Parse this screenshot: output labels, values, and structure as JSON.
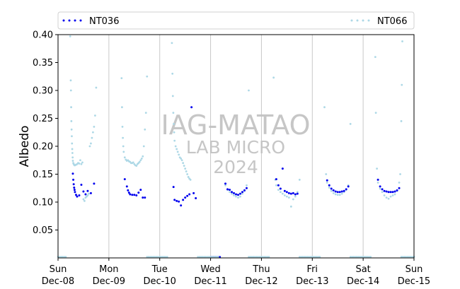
{
  "chart_data": {
    "type": "scatter",
    "ylabel": "Albedo",
    "xlabel": "",
    "title": "",
    "ylim": [
      0.0,
      0.4
    ],
    "yticks": [
      0.05,
      0.1,
      0.15,
      0.2,
      0.25,
      0.3,
      0.35,
      0.4
    ],
    "xlim": [
      "2024-12-08",
      "2024-12-15"
    ],
    "xticks": [
      {
        "day": "Sun",
        "date": "Dec-08"
      },
      {
        "day": "Mon",
        "date": "Dec-09"
      },
      {
        "day": "Tue",
        "date": "Dec-10"
      },
      {
        "day": "Wed",
        "date": "Dec-11"
      },
      {
        "day": "Thu",
        "date": "Dec-12"
      },
      {
        "day": "Fri",
        "date": "Dec-13"
      },
      {
        "day": "Sat",
        "date": "Dec-14"
      },
      {
        "day": "Sun",
        "date": "Dec-15"
      }
    ],
    "grid": "vertical-at-day-boundaries",
    "legend_placement": "top",
    "watermark": [
      "IAG-MATAO",
      "LAB MICRO",
      "2024"
    ],
    "series": [
      {
        "name": "NT036",
        "color": "#0000ee",
        "points": [
          [
            "2024-12-08 07:00",
            0.151
          ],
          [
            "2024-12-08 07:12",
            0.14
          ],
          [
            "2024-12-08 07:24",
            0.132
          ],
          [
            "2024-12-08 07:36",
            0.126
          ],
          [
            "2024-12-08 07:48",
            0.122
          ],
          [
            "2024-12-08 08:00",
            0.118
          ],
          [
            "2024-12-08 08:30",
            0.113
          ],
          [
            "2024-12-08 09:00",
            0.11
          ],
          [
            "2024-12-08 10:00",
            0.112
          ],
          [
            "2024-12-08 11:00",
            0.131
          ],
          [
            "2024-12-08 12:00",
            0.119
          ],
          [
            "2024-12-08 13:00",
            0.114
          ],
          [
            "2024-12-08 14:00",
            0.12
          ],
          [
            "2024-12-08 15:30",
            0.116
          ],
          [
            "2024-12-08 17:00",
            0.133
          ],
          [
            "2024-12-09 07:30",
            0.141
          ],
          [
            "2024-12-09 08:30",
            0.128
          ],
          [
            "2024-12-09 09:00",
            0.121
          ],
          [
            "2024-12-09 09:30",
            0.117
          ],
          [
            "2024-12-09 10:00",
            0.114
          ],
          [
            "2024-12-09 11:00",
            0.113
          ],
          [
            "2024-12-09 12:00",
            0.113
          ],
          [
            "2024-12-09 13:00",
            0.112
          ],
          [
            "2024-12-09 14:00",
            0.117
          ],
          [
            "2024-12-09 15:00",
            0.122
          ],
          [
            "2024-12-09 16:00",
            0.108
          ],
          [
            "2024-12-09 17:00",
            0.108
          ],
          [
            "2024-12-10 06:30",
            0.127
          ],
          [
            "2024-12-10 07:00",
            0.104
          ],
          [
            "2024-12-10 08:00",
            0.102
          ],
          [
            "2024-12-10 09:00",
            0.101
          ],
          [
            "2024-12-10 10:00",
            0.094
          ],
          [
            "2024-12-10 11:00",
            0.104
          ],
          [
            "2024-12-10 12:00",
            0.108
          ],
          [
            "2024-12-10 13:00",
            0.111
          ],
          [
            "2024-12-10 14:00",
            0.114
          ],
          [
            "2024-12-10 15:00",
            0.27
          ],
          [
            "2024-12-10 16:00",
            0.116
          ],
          [
            "2024-12-10 17:00",
            0.107
          ],
          [
            "2024-12-11 07:00",
            0.133
          ],
          [
            "2024-12-11 08:00",
            0.123
          ],
          [
            "2024-12-11 09:00",
            0.122
          ],
          [
            "2024-12-11 10:00",
            0.118
          ],
          [
            "2024-12-11 11:00",
            0.116
          ],
          [
            "2024-12-11 12:00",
            0.114
          ],
          [
            "2024-12-11 13:00",
            0.113
          ],
          [
            "2024-12-11 14:00",
            0.115
          ],
          [
            "2024-12-11 15:00",
            0.118
          ],
          [
            "2024-12-11 16:00",
            0.121
          ],
          [
            "2024-12-11 17:00",
            0.125
          ],
          [
            "2024-12-12 07:00",
            0.141
          ],
          [
            "2024-12-12 08:00",
            0.13
          ],
          [
            "2024-12-12 09:00",
            0.124
          ],
          [
            "2024-12-12 10:00",
            0.16
          ],
          [
            "2024-12-12 11:00",
            0.12
          ],
          [
            "2024-12-12 12:00",
            0.118
          ],
          [
            "2024-12-12 13:00",
            0.116
          ],
          [
            "2024-12-12 14:00",
            0.115
          ],
          [
            "2024-12-12 15:00",
            0.116
          ],
          [
            "2024-12-12 16:00",
            0.114
          ],
          [
            "2024-12-12 17:00",
            0.115
          ],
          [
            "2024-12-13 07:00",
            0.139
          ],
          [
            "2024-12-13 08:00",
            0.13
          ],
          [
            "2024-12-13 09:00",
            0.124
          ],
          [
            "2024-12-13 10:00",
            0.121
          ],
          [
            "2024-12-13 11:00",
            0.119
          ],
          [
            "2024-12-13 12:00",
            0.118
          ],
          [
            "2024-12-13 13:00",
            0.118
          ],
          [
            "2024-12-13 14:00",
            0.119
          ],
          [
            "2024-12-13 15:00",
            0.12
          ],
          [
            "2024-12-13 16:00",
            0.123
          ],
          [
            "2024-12-13 17:00",
            0.128
          ],
          [
            "2024-12-14 07:00",
            0.14
          ],
          [
            "2024-12-14 08:00",
            0.128
          ],
          [
            "2024-12-14 09:00",
            0.123
          ],
          [
            "2024-12-14 10:00",
            0.12
          ],
          [
            "2024-12-14 11:00",
            0.119
          ],
          [
            "2024-12-14 12:00",
            0.118
          ],
          [
            "2024-12-14 13:00",
            0.118
          ],
          [
            "2024-12-14 14:00",
            0.118
          ],
          [
            "2024-12-14 15:00",
            0.119
          ],
          [
            "2024-12-14 16:00",
            0.121
          ],
          [
            "2024-12-14 17:00",
            0.125
          ]
        ]
      },
      {
        "name": "NT066",
        "color": "#add8e6",
        "points": [
          [
            "2024-12-08 05:45",
            0.397
          ],
          [
            "2024-12-08 06:00",
            0.318
          ],
          [
            "2024-12-08 06:06",
            0.3
          ],
          [
            "2024-12-08 06:12",
            0.27
          ],
          [
            "2024-12-08 06:18",
            0.245
          ],
          [
            "2024-12-08 06:24",
            0.23
          ],
          [
            "2024-12-08 06:30",
            0.218
          ],
          [
            "2024-12-08 06:36",
            0.205
          ],
          [
            "2024-12-08 06:42",
            0.195
          ],
          [
            "2024-12-08 06:48",
            0.188
          ],
          [
            "2024-12-08 06:54",
            0.18
          ],
          [
            "2024-12-08 07:00",
            0.174
          ],
          [
            "2024-12-08 07:12",
            0.17
          ],
          [
            "2024-12-08 07:24",
            0.168
          ],
          [
            "2024-12-08 07:36",
            0.167
          ],
          [
            "2024-12-08 07:48",
            0.166
          ],
          [
            "2024-12-08 08:00",
            0.166
          ],
          [
            "2024-12-08 08:30",
            0.167
          ],
          [
            "2024-12-08 09:00",
            0.168
          ],
          [
            "2024-12-08 09:30",
            0.17
          ],
          [
            "2024-12-08 10:00",
            0.169
          ],
          [
            "2024-12-08 10:30",
            0.175
          ],
          [
            "2024-12-08 11:00",
            0.168
          ],
          [
            "2024-12-08 11:30",
            0.171
          ],
          [
            "2024-12-08 12:00",
            0.105
          ],
          [
            "2024-12-08 12:30",
            0.102
          ],
          [
            "2024-12-08 13:00",
            0.108
          ],
          [
            "2024-12-08 13:30",
            0.11
          ],
          [
            "2024-12-08 14:00",
            0.112
          ],
          [
            "2024-12-08 14:30",
            0.115
          ],
          [
            "2024-12-08 15:00",
            0.2
          ],
          [
            "2024-12-08 15:30",
            0.205
          ],
          [
            "2024-12-08 16:00",
            0.215
          ],
          [
            "2024-12-08 16:30",
            0.225
          ],
          [
            "2024-12-08 17:00",
            0.235
          ],
          [
            "2024-12-08 17:30",
            0.255
          ],
          [
            "2024-12-08 18:00",
            0.305
          ],
          [
            "2024-12-09 06:00",
            0.322
          ],
          [
            "2024-12-09 06:12",
            0.27
          ],
          [
            "2024-12-09 06:24",
            0.235
          ],
          [
            "2024-12-09 06:36",
            0.215
          ],
          [
            "2024-12-09 06:48",
            0.2
          ],
          [
            "2024-12-09 07:00",
            0.19
          ],
          [
            "2024-12-09 07:30",
            0.18
          ],
          [
            "2024-12-09 08:00",
            0.176
          ],
          [
            "2024-12-09 08:30",
            0.174
          ],
          [
            "2024-12-09 09:00",
            0.175
          ],
          [
            "2024-12-09 09:30",
            0.173
          ],
          [
            "2024-12-09 10:00",
            0.172
          ],
          [
            "2024-12-09 10:30",
            0.17
          ],
          [
            "2024-12-09 11:00",
            0.17
          ],
          [
            "2024-12-09 11:30",
            0.171
          ],
          [
            "2024-12-09 12:00",
            0.168
          ],
          [
            "2024-12-09 12:30",
            0.166
          ],
          [
            "2024-12-09 13:00",
            0.165
          ],
          [
            "2024-12-09 13:30",
            0.168
          ],
          [
            "2024-12-09 14:00",
            0.17
          ],
          [
            "2024-12-09 14:30",
            0.172
          ],
          [
            "2024-12-09 15:00",
            0.175
          ],
          [
            "2024-12-09 15:30",
            0.178
          ],
          [
            "2024-12-09 16:00",
            0.182
          ],
          [
            "2024-12-09 16:30",
            0.2
          ],
          [
            "2024-12-09 17:00",
            0.23
          ],
          [
            "2024-12-09 17:30",
            0.26
          ],
          [
            "2024-12-09 18:00",
            0.325
          ],
          [
            "2024-12-10 05:45",
            0.385
          ],
          [
            "2024-12-10 06:00",
            0.33
          ],
          [
            "2024-12-10 06:12",
            0.29
          ],
          [
            "2024-12-10 06:24",
            0.26
          ],
          [
            "2024-12-10 06:36",
            0.24
          ],
          [
            "2024-12-10 06:48",
            0.225
          ],
          [
            "2024-12-10 07:00",
            0.21
          ],
          [
            "2024-12-10 07:30",
            0.2
          ],
          [
            "2024-12-10 08:00",
            0.195
          ],
          [
            "2024-12-10 08:30",
            0.19
          ],
          [
            "2024-12-10 09:00",
            0.185
          ],
          [
            "2024-12-10 09:30",
            0.18
          ],
          [
            "2024-12-10 10:00",
            0.178
          ],
          [
            "2024-12-10 10:30",
            0.175
          ],
          [
            "2024-12-10 11:00",
            0.17
          ],
          [
            "2024-12-10 11:30",
            0.165
          ],
          [
            "2024-12-10 12:00",
            0.16
          ],
          [
            "2024-12-10 12:30",
            0.155
          ],
          [
            "2024-12-10 13:00",
            0.15
          ],
          [
            "2024-12-10 13:30",
            0.145
          ],
          [
            "2024-12-10 14:00",
            0.142
          ],
          [
            "2024-12-10 14:30",
            0.14
          ],
          [
            "2024-12-11 07:00",
            0.13
          ],
          [
            "2024-12-11 08:00",
            0.122
          ],
          [
            "2024-12-11 09:00",
            0.118
          ],
          [
            "2024-12-11 10:00",
            0.115
          ],
          [
            "2024-12-11 11:00",
            0.112
          ],
          [
            "2024-12-11 12:00",
            0.11
          ],
          [
            "2024-12-11 13:00",
            0.108
          ],
          [
            "2024-12-11 14:00",
            0.11
          ],
          [
            "2024-12-11 15:00",
            0.115
          ],
          [
            "2024-12-11 16:00",
            0.12
          ],
          [
            "2024-12-11 17:00",
            0.13
          ],
          [
            "2024-12-11 18:00",
            0.3
          ],
          [
            "2024-12-12 05:45",
            0.323
          ],
          [
            "2024-12-12 06:30",
            0.14
          ],
          [
            "2024-12-12 07:00",
            0.13
          ],
          [
            "2024-12-12 08:00",
            0.122
          ],
          [
            "2024-12-12 09:00",
            0.118
          ],
          [
            "2024-12-12 10:00",
            0.115
          ],
          [
            "2024-12-12 11:00",
            0.112
          ],
          [
            "2024-12-12 12:00",
            0.11
          ],
          [
            "2024-12-12 13:00",
            0.108
          ],
          [
            "2024-12-12 14:00",
            0.092
          ],
          [
            "2024-12-12 15:00",
            0.105
          ],
          [
            "2024-12-12 16:00",
            0.11
          ],
          [
            "2024-12-12 17:00",
            0.118
          ],
          [
            "2024-12-12 18:00",
            0.14
          ],
          [
            "2024-12-13 05:45",
            0.27
          ],
          [
            "2024-12-13 06:30",
            0.15
          ],
          [
            "2024-12-13 07:00",
            0.135
          ],
          [
            "2024-12-13 08:00",
            0.126
          ],
          [
            "2024-12-13 09:00",
            0.12
          ],
          [
            "2024-12-13 10:00",
            0.116
          ],
          [
            "2024-12-13 11:00",
            0.114
          ],
          [
            "2024-12-13 12:00",
            0.113
          ],
          [
            "2024-12-13 13:00",
            0.113
          ],
          [
            "2024-12-13 14:00",
            0.115
          ],
          [
            "2024-12-13 15:00",
            0.118
          ],
          [
            "2024-12-13 16:00",
            0.122
          ],
          [
            "2024-12-13 17:00",
            0.13
          ],
          [
            "2024-12-13 18:00",
            0.24
          ],
          [
            "2024-12-14 05:45",
            0.36
          ],
          [
            "2024-12-14 06:00",
            0.26
          ],
          [
            "2024-12-14 06:30",
            0.16
          ],
          [
            "2024-12-14 07:00",
            0.135
          ],
          [
            "2024-12-14 08:00",
            0.124
          ],
          [
            "2024-12-14 09:00",
            0.118
          ],
          [
            "2024-12-14 10:00",
            0.112
          ],
          [
            "2024-12-14 11:00",
            0.108
          ],
          [
            "2024-12-14 12:00",
            0.106
          ],
          [
            "2024-12-14 13:00",
            0.11
          ],
          [
            "2024-12-14 14:00",
            0.112
          ],
          [
            "2024-12-14 15:00",
            0.114
          ],
          [
            "2024-12-14 16:00",
            0.12
          ],
          [
            "2024-12-14 17:00",
            0.135
          ],
          [
            "2024-12-14 17:30",
            0.15
          ],
          [
            "2024-12-14 18:00",
            0.245
          ],
          [
            "2024-12-14 18:15",
            0.31
          ],
          [
            "2024-12-14 18:30",
            0.388
          ]
        ]
      }
    ],
    "night_markers": [
      {
        "series": "NT036",
        "intervals": [
          [
            "2024-12-11 00:00",
            "2024-12-11 05:00"
          ]
        ]
      },
      {
        "series": "NT066",
        "intervals": [
          [
            "2024-12-08 00:00",
            "2024-12-08 04:00"
          ],
          [
            "2024-12-09 18:00",
            "2024-12-10 04:00"
          ],
          [
            "2024-12-10 18:00",
            "2024-12-11 04:00"
          ],
          [
            "2024-12-11 18:00",
            "2024-12-12 04:00"
          ],
          [
            "2024-12-12 18:00",
            "2024-12-13 04:00"
          ],
          [
            "2024-12-13 18:00",
            "2024-12-14 04:00"
          ],
          [
            "2024-12-14 18:00",
            "2024-12-15 04:00"
          ],
          [
            "2024-12-15 00:00",
            "2024-12-15 04:00"
          ]
        ]
      }
    ]
  }
}
